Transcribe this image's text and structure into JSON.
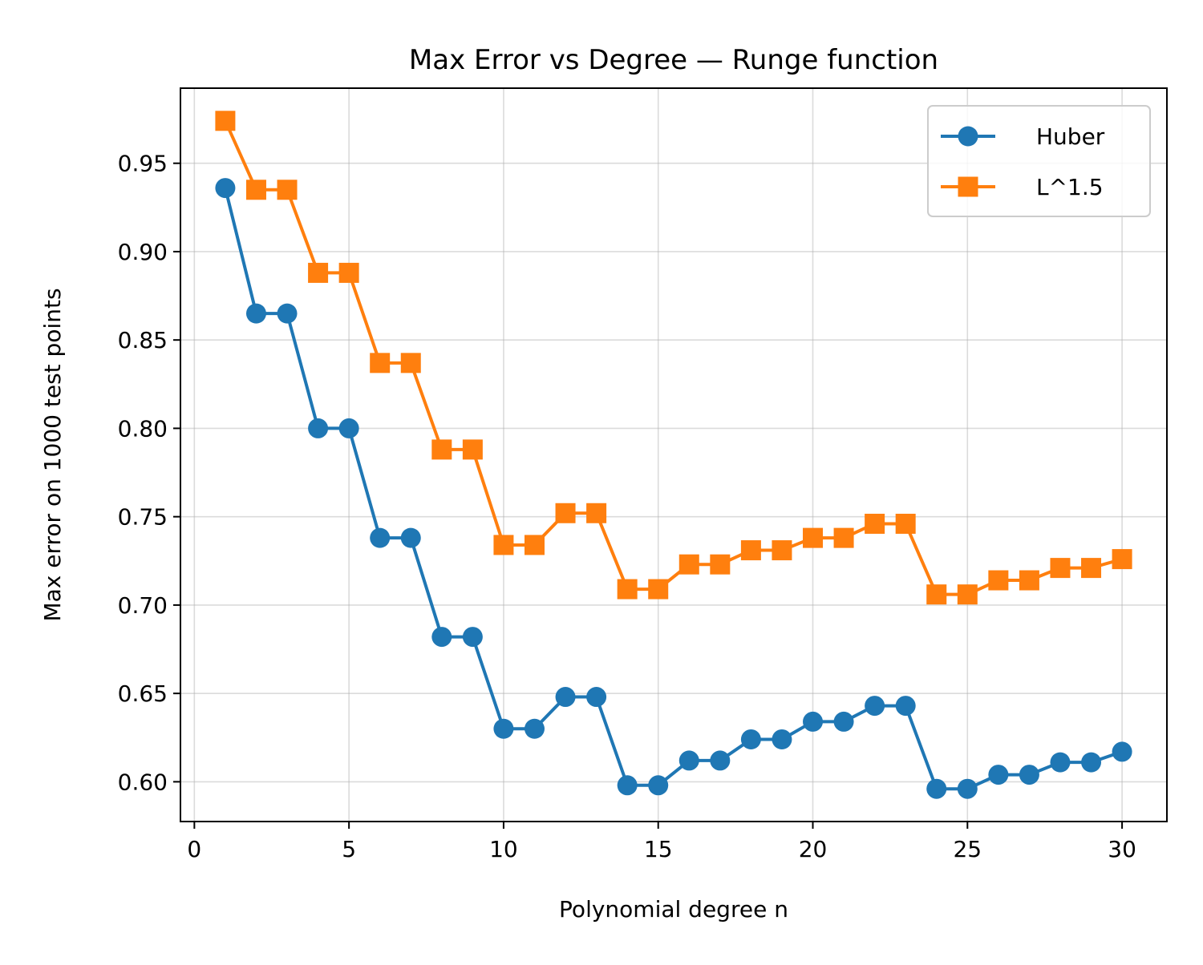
{
  "chart_data": {
    "type": "line",
    "title": "Max Error vs Degree — Runge function",
    "xlabel": "Polynomial degree n",
    "ylabel": "Max error on 1000 test points",
    "xlim": [
      -0.45,
      31.45
    ],
    "ylim": [
      0.5775,
      0.9925
    ],
    "xticks": [
      0,
      5,
      10,
      15,
      20,
      25,
      30
    ],
    "xtick_labels": [
      "0",
      "5",
      "10",
      "15",
      "20",
      "25",
      "30"
    ],
    "yticks": [
      0.6,
      0.65,
      0.7,
      0.75,
      0.8,
      0.85,
      0.9,
      0.95
    ],
    "ytick_labels": [
      "0.60",
      "0.65",
      "0.70",
      "0.75",
      "0.80",
      "0.85",
      "0.90",
      "0.95"
    ],
    "grid": true,
    "legend_position": "top-right",
    "x": [
      1,
      2,
      3,
      4,
      5,
      6,
      7,
      8,
      9,
      10,
      11,
      12,
      13,
      14,
      15,
      16,
      17,
      18,
      19,
      20,
      21,
      22,
      23,
      24,
      25,
      26,
      27,
      28,
      29,
      30
    ],
    "series": [
      {
        "name": "Huber",
        "color": "#1f77b4",
        "marker": "circle",
        "values": [
          0.936,
          0.865,
          0.865,
          0.8,
          0.8,
          0.738,
          0.738,
          0.682,
          0.682,
          0.63,
          0.63,
          0.648,
          0.648,
          0.598,
          0.598,
          0.612,
          0.612,
          0.624,
          0.624,
          0.634,
          0.634,
          0.643,
          0.643,
          0.596,
          0.596,
          0.604,
          0.604,
          0.611,
          0.611,
          0.617
        ]
      },
      {
        "name": "L^1.5",
        "color": "#ff7f0e",
        "marker": "square",
        "values": [
          0.974,
          0.935,
          0.935,
          0.888,
          0.888,
          0.837,
          0.837,
          0.788,
          0.788,
          0.734,
          0.734,
          0.752,
          0.752,
          0.709,
          0.709,
          0.723,
          0.723,
          0.731,
          0.731,
          0.738,
          0.738,
          0.746,
          0.746,
          0.706,
          0.706,
          0.714,
          0.714,
          0.721,
          0.721,
          0.726
        ]
      }
    ]
  }
}
